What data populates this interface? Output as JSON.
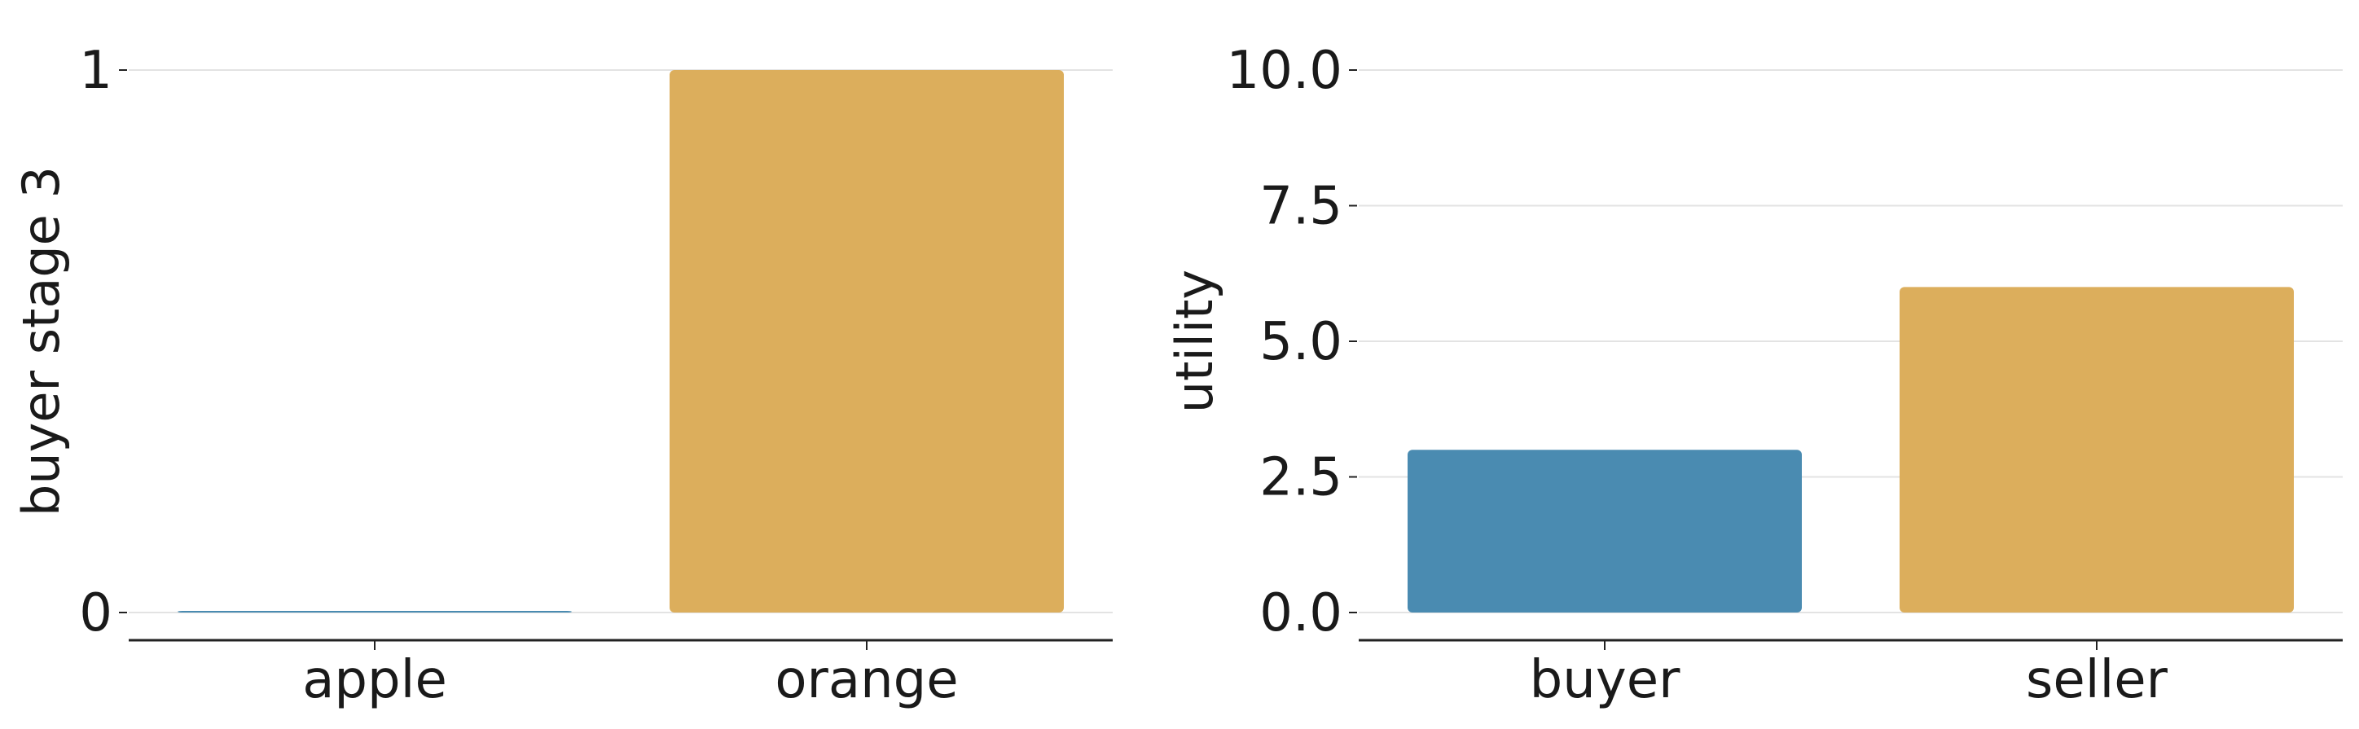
{
  "chart_data": [
    {
      "type": "bar",
      "categories": [
        "apple",
        "orange"
      ],
      "values": [
        0,
        1
      ],
      "colors": [
        "#4a8bb1",
        "#dcae5c"
      ],
      "xlabel": "",
      "ylabel": "buyer stage 3",
      "ylim": [
        0,
        1
      ],
      "yticks": [
        0,
        1
      ],
      "ytick_labels": [
        "0",
        "1"
      ],
      "grid": true
    },
    {
      "type": "bar",
      "categories": [
        "buyer",
        "seller"
      ],
      "values": [
        3,
        6
      ],
      "colors": [
        "#4a8bb1",
        "#dcae5c"
      ],
      "xlabel": "",
      "ylabel": "utility",
      "ylim": [
        0,
        10
      ],
      "yticks": [
        0,
        2.5,
        5,
        7.5,
        10
      ],
      "ytick_labels": [
        "0.0",
        "2.5",
        "5.0",
        "7.5",
        "10.0"
      ],
      "grid": true
    }
  ]
}
